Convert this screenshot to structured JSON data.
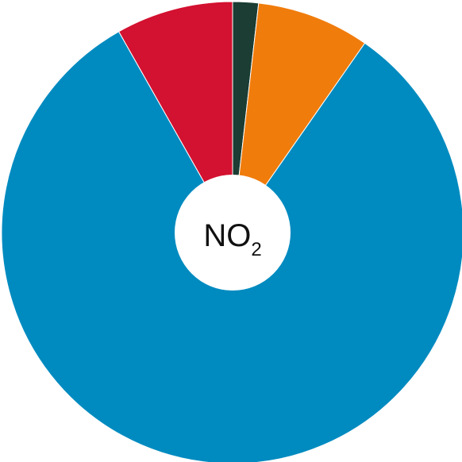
{
  "chart_data": {
    "type": "pie",
    "title": "",
    "center_label": {
      "main": "NO",
      "subscript": "2"
    },
    "slices": [
      {
        "value": 1.8,
        "color": "#1b3d33"
      },
      {
        "value": 7.9,
        "color": "#f07c0c"
      },
      {
        "value": 82.1,
        "color": "#008bc0"
      },
      {
        "value": 8.2,
        "color": "#d31130"
      }
    ],
    "start_angle_deg": 0,
    "direction": "clockwise",
    "legend": "none",
    "hole": true
  }
}
